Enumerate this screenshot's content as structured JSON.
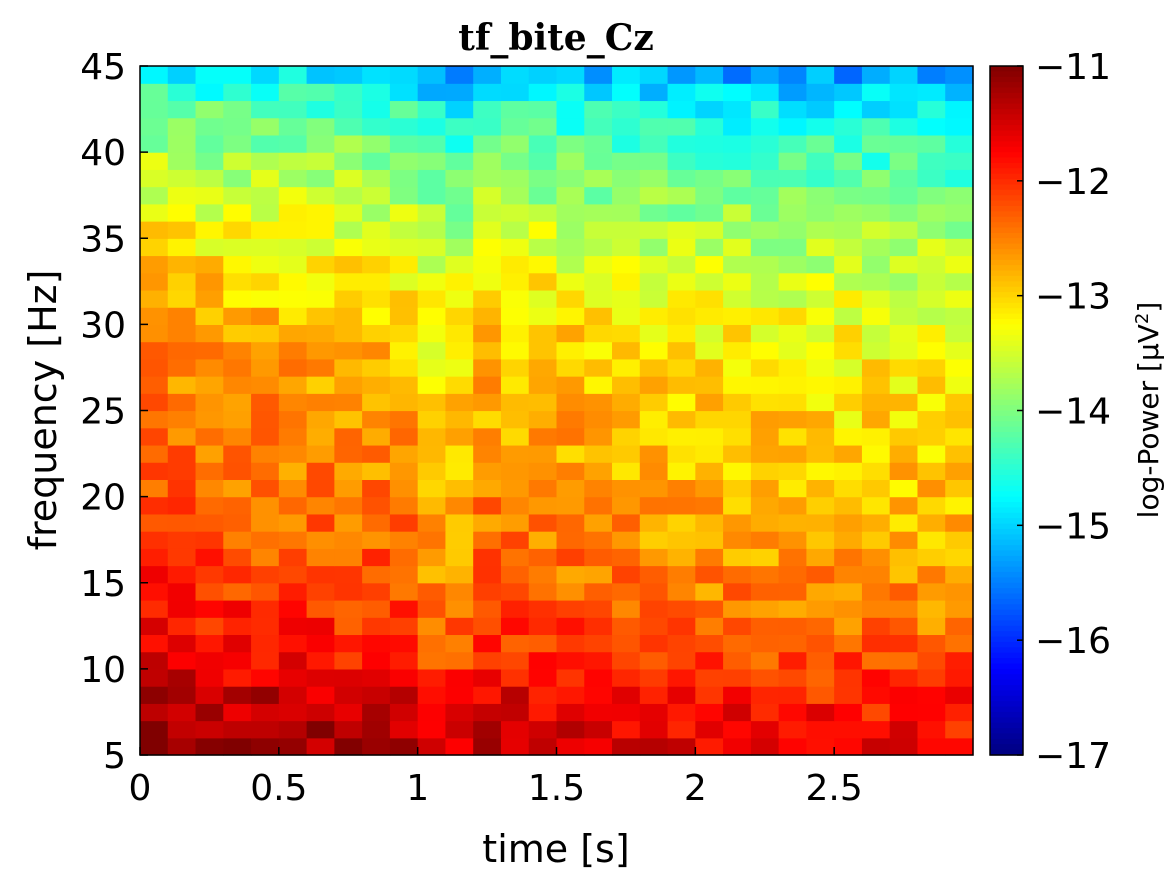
{
  "chart_data": {
    "type": "heatmap",
    "title": "tf_bite_Cz",
    "xlabel": "time [s]",
    "ylabel": "frequency [Hz]",
    "colorbar_label": "log-Power [μV",
    "colorbar_label_sup": "2",
    "colorbar_label_end": "]",
    "colormap": "jet",
    "xlim": [
      0,
      3.0
    ],
    "ylim": [
      5,
      45
    ],
    "clim": [
      -17,
      -11
    ],
    "x_ticks": [
      0,
      0.5,
      1,
      1.5,
      2,
      2.5
    ],
    "x_tick_labels": [
      "0",
      "0.5",
      "1",
      "1.5",
      "2",
      "2.5"
    ],
    "y_ticks": [
      5,
      10,
      15,
      20,
      25,
      30,
      35,
      40,
      45
    ],
    "y_tick_labels": [
      "5",
      "10",
      "15",
      "20",
      "25",
      "30",
      "35",
      "40",
      "45"
    ],
    "colorbar_ticks": [
      -11,
      -12,
      -13,
      -14,
      -15,
      -16,
      -17
    ],
    "colorbar_tick_labels": [
      "−11",
      "−12",
      "−13",
      "−14",
      "−15",
      "−16",
      "−17"
    ],
    "time_bins": 30,
    "frequency_bins": 40,
    "time_step_s": 0.1,
    "frequency_step_hz": 1,
    "power_profile_by_frequency": [
      {
        "freq": 5,
        "value": -11.4
      },
      {
        "freq": 8,
        "value": -11.6
      },
      {
        "freq": 10,
        "value": -11.9
      },
      {
        "freq": 13,
        "value": -12.2
      },
      {
        "freq": 16,
        "value": -12.4
      },
      {
        "freq": 20,
        "value": -12.6
      },
      {
        "freq": 25,
        "value": -12.8
      },
      {
        "freq": 30,
        "value": -13.0
      },
      {
        "freq": 35,
        "value": -13.5
      },
      {
        "freq": 40,
        "value": -14.1
      },
      {
        "freq": 43,
        "value": -14.6
      },
      {
        "freq": 45,
        "value": -15.2
      }
    ],
    "power_profile_by_time": [
      {
        "t": 0.0,
        "offset": 0.4
      },
      {
        "t": 0.5,
        "offset": 0.2
      },
      {
        "t": 1.0,
        "offset": 0.1
      },
      {
        "t": 1.1,
        "offset": -0.5
      },
      {
        "t": 1.2,
        "offset": 0.1
      },
      {
        "t": 2.0,
        "offset": -0.2
      },
      {
        "t": 2.9,
        "offset": -0.3
      }
    ]
  }
}
